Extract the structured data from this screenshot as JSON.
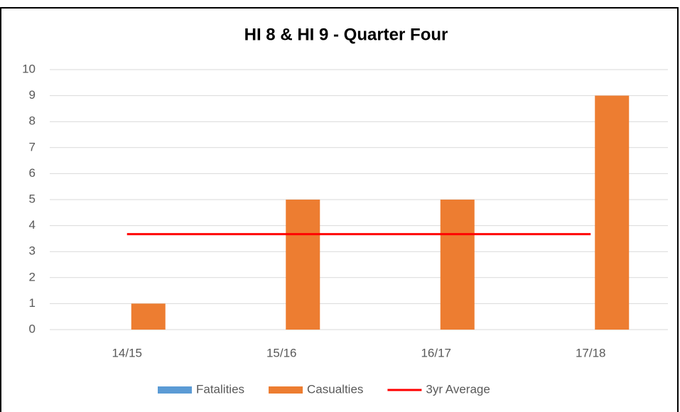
{
  "chart_data": {
    "type": "bar",
    "title": "HI 8 & HI 9 - Quarter Four",
    "categories": [
      "14/15",
      "15/16",
      "16/17",
      "17/18"
    ],
    "series": [
      {
        "name": "Fatalities",
        "color": "#5b9bd5",
        "values": [
          0,
          0,
          0,
          0
        ]
      },
      {
        "name": "Casualties",
        "color": "#ed7d31",
        "values": [
          1,
          5,
          5,
          9
        ]
      },
      {
        "name": "3yr Average",
        "color": "#ff0000",
        "type": "line",
        "values": [
          3.67,
          3.67,
          3.67,
          3.67
        ]
      }
    ],
    "ylim": [
      0,
      10
    ],
    "yticks": [
      0,
      1,
      2,
      3,
      4,
      5,
      6,
      7,
      8,
      9,
      10
    ],
    "grid": true,
    "legend": "bottom"
  }
}
